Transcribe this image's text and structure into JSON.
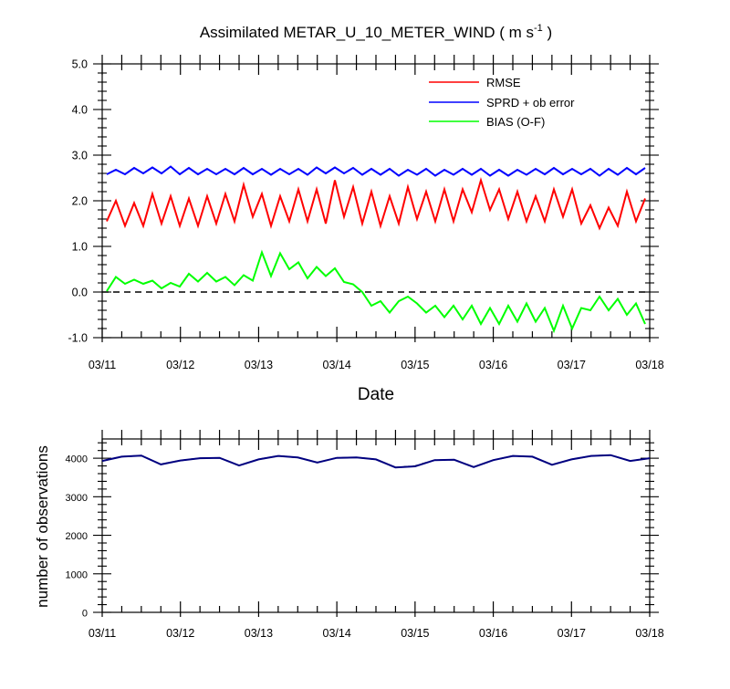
{
  "chart_data": [
    {
      "type": "line",
      "title": "Assimilated METAR_U_10_METER_WIND ( m s",
      "title_sup": "-1",
      "title_end": " )",
      "xlabel": "Date",
      "ylabel": "",
      "xlim": [
        0,
        7
      ],
      "ylim": [
        -1.0,
        5.0
      ],
      "yticks": [
        -1.0,
        0.0,
        1.0,
        2.0,
        3.0,
        4.0,
        5.0
      ],
      "ytick_labels": [
        "-1.0",
        "0.0",
        "1.0",
        "2.0",
        "3.0",
        "4.0",
        "5.0"
      ],
      "xtick_labels": [
        "03/11",
        "03/12",
        "03/13",
        "03/14",
        "03/15",
        "03/16",
        "03/17",
        "03/18"
      ],
      "x_minor_ticks_per_day": 4,
      "reference_line": {
        "y": 0.0,
        "style": "dashed"
      },
      "legend": "top-right",
      "series": [
        {
          "name": "RMSE",
          "color": "#ff0000",
          "values": [
            1.55,
            2.0,
            1.45,
            1.95,
            1.45,
            2.15,
            1.5,
            2.1,
            1.45,
            2.05,
            1.45,
            2.1,
            1.5,
            2.15,
            1.55,
            2.35,
            1.65,
            2.15,
            1.45,
            2.1,
            1.55,
            2.25,
            1.55,
            2.25,
            1.5,
            2.45,
            1.65,
            2.3,
            1.5,
            2.2,
            1.45,
            2.1,
            1.5,
            2.3,
            1.6,
            2.2,
            1.55,
            2.25,
            1.55,
            2.25,
            1.75,
            2.45,
            1.8,
            2.25,
            1.6,
            2.2,
            1.55,
            2.1,
            1.55,
            2.25,
            1.65,
            2.25,
            1.5,
            1.9,
            1.4,
            1.85,
            1.45,
            2.2,
            1.55,
            2.05
          ]
        },
        {
          "name": "SPRD + ob error",
          "color": "#0000ff",
          "values": [
            2.58,
            2.68,
            2.58,
            2.72,
            2.6,
            2.73,
            2.6,
            2.75,
            2.58,
            2.72,
            2.58,
            2.7,
            2.58,
            2.7,
            2.58,
            2.72,
            2.58,
            2.7,
            2.57,
            2.7,
            2.58,
            2.7,
            2.57,
            2.73,
            2.6,
            2.73,
            2.6,
            2.72,
            2.57,
            2.7,
            2.57,
            2.7,
            2.55,
            2.68,
            2.57,
            2.7,
            2.55,
            2.68,
            2.57,
            2.7,
            2.57,
            2.7,
            2.55,
            2.68,
            2.55,
            2.68,
            2.57,
            2.7,
            2.58,
            2.72,
            2.58,
            2.7,
            2.58,
            2.7,
            2.55,
            2.7,
            2.57,
            2.72,
            2.58,
            2.72
          ]
        },
        {
          "name": "BIAS (O-F)",
          "color": "#00ff00",
          "values": [
            0.02,
            0.33,
            0.18,
            0.27,
            0.18,
            0.25,
            0.08,
            0.2,
            0.12,
            0.4,
            0.23,
            0.42,
            0.23,
            0.33,
            0.15,
            0.37,
            0.25,
            0.87,
            0.35,
            0.85,
            0.5,
            0.65,
            0.3,
            0.55,
            0.35,
            0.52,
            0.22,
            0.17,
            0.0,
            -0.3,
            -0.2,
            -0.45,
            -0.2,
            -0.1,
            -0.25,
            -0.45,
            -0.3,
            -0.55,
            -0.3,
            -0.6,
            -0.3,
            -0.7,
            -0.35,
            -0.7,
            -0.3,
            -0.65,
            -0.25,
            -0.65,
            -0.35,
            -0.85,
            -0.3,
            -0.8,
            -0.35,
            -0.4,
            -0.1,
            -0.4,
            -0.15,
            -0.5,
            -0.25,
            -0.7
          ]
        }
      ]
    },
    {
      "type": "line",
      "title": "",
      "xlabel": "",
      "ylabel": "number of observations",
      "xlim": [
        0,
        7
      ],
      "ylim": [
        0,
        4500
      ],
      "yticks": [
        0,
        1000,
        2000,
        3000,
        4000
      ],
      "ytick_labels": [
        "0",
        "1000",
        "2000",
        "3000",
        "4000"
      ],
      "xtick_labels": [
        "03/11",
        "03/12",
        "03/13",
        "03/14",
        "03/15",
        "03/16",
        "03/17",
        "03/18"
      ],
      "x_minor_ticks_per_day": 4,
      "series": [
        {
          "color": "#000000",
          "style": "dashed",
          "x": [
            0,
            0.25,
            0.5,
            0.75,
            1,
            1.25,
            1.5,
            1.75,
            2,
            2.25,
            2.5,
            2.75,
            3,
            3.25,
            3.5,
            3.75,
            4,
            4.25,
            4.5,
            4.75,
            5,
            5.25,
            5.5,
            5.75,
            6,
            6.25,
            6.5,
            6.75,
            7
          ],
          "values": [
            3930,
            4040,
            4070,
            3840,
            3940,
            4000,
            4010,
            3810,
            3970,
            4060,
            4020,
            3890,
            4010,
            4020,
            3970,
            3760,
            3800,
            3950,
            3960,
            3770,
            3950,
            4060,
            4040,
            3830,
            3970,
            4060,
            4080,
            3930,
            4000
          ]
        },
        {
          "color": "#000080",
          "x": [
            0,
            0.25,
            0.5,
            0.75,
            1,
            1.25,
            1.5,
            1.75,
            2,
            2.25,
            2.5,
            2.75,
            3,
            3.25,
            3.5,
            3.75,
            4,
            4.25,
            4.5,
            4.75,
            5,
            5.25,
            5.5,
            5.75,
            6,
            6.25,
            6.5,
            6.75,
            7
          ],
          "values": [
            3930,
            4040,
            4070,
            3840,
            3940,
            4000,
            4010,
            3810,
            3970,
            4060,
            4020,
            3890,
            4010,
            4020,
            3970,
            3760,
            3790,
            3950,
            3960,
            3770,
            3950,
            4060,
            4040,
            3830,
            3970,
            4060,
            4080,
            3930,
            4000
          ]
        }
      ]
    }
  ]
}
